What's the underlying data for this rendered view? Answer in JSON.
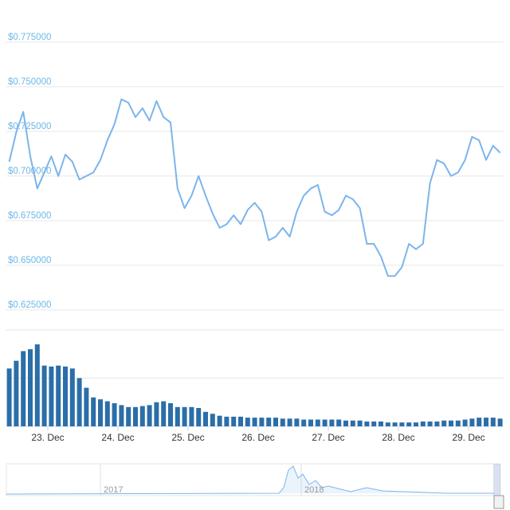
{
  "chart_data": {
    "type": "line",
    "x": [
      -0.55,
      -0.45,
      -0.35,
      -0.25,
      -0.15,
      -0.05,
      0.05,
      0.15,
      0.25,
      0.35,
      0.45,
      0.55,
      0.65,
      0.75,
      0.85,
      0.95,
      1.05,
      1.15,
      1.25,
      1.35,
      1.45,
      1.55,
      1.65,
      1.75,
      1.85,
      1.95,
      2.05,
      2.15,
      2.25,
      2.35,
      2.45,
      2.55,
      2.65,
      2.75,
      2.85,
      2.95,
      3.05,
      3.15,
      3.25,
      3.35,
      3.45,
      3.55,
      3.65,
      3.75,
      3.85,
      3.95,
      4.05,
      4.15,
      4.25,
      4.35,
      4.45,
      4.55,
      4.65,
      4.75,
      4.85,
      4.95,
      5.05,
      5.15,
      5.25,
      5.35,
      5.45,
      5.55,
      5.65,
      5.75,
      5.85,
      5.95,
      6.05,
      6.15,
      6.25,
      6.35,
      6.45
    ],
    "series": [
      {
        "color": "#7cb5ec",
        "values": [
          0.708,
          0.7245,
          0.736,
          0.711,
          0.693,
          0.702,
          0.711,
          0.7,
          0.712,
          0.708,
          0.698,
          0.7,
          0.702,
          0.709,
          0.72,
          0.729,
          0.743,
          0.741,
          0.733,
          0.738,
          0.731,
          0.742,
          0.733,
          0.73,
          0.693,
          0.682,
          0.689,
          0.7,
          0.689,
          0.679,
          0.671,
          0.673,
          0.678,
          0.673,
          0.681,
          0.685,
          0.68,
          0.664,
          0.666,
          0.671,
          0.666,
          0.68,
          0.689,
          0.693,
          0.695,
          0.68,
          0.678,
          0.681,
          0.689,
          0.687,
          0.682,
          0.662,
          0.662,
          0.655,
          0.644,
          0.644,
          0.649,
          0.662,
          0.659,
          0.662,
          0.696,
          0.709,
          0.707,
          0.7,
          0.702,
          0.709,
          0.722,
          0.72,
          0.709,
          0.717,
          0.713
        ]
      },
      {
        "type": "bar",
        "axis": "y2",
        "color": "#2b6ea8",
        "values": [
          60,
          68,
          78,
          80,
          85,
          63,
          62,
          63,
          62,
          60,
          50,
          40,
          30,
          28,
          26,
          24,
          22,
          20,
          20,
          21,
          22,
          25,
          26,
          24,
          20,
          20,
          20,
          19,
          15,
          13,
          11,
          10,
          10,
          10,
          9,
          9,
          9,
          9,
          9,
          8,
          8,
          8,
          7,
          7,
          7,
          7,
          7,
          7,
          6,
          6,
          6,
          5,
          5,
          5,
          4,
          4,
          4,
          4,
          4,
          5,
          5,
          5,
          6,
          6,
          6,
          7,
          8,
          9,
          9,
          9,
          8
        ]
      }
    ],
    "xlim": [
      -0.57,
      6.45
    ],
    "xticks": [
      {
        "value": 0,
        "label": "23. Dec"
      },
      {
        "value": 1,
        "label": "24. Dec"
      },
      {
        "value": 2,
        "label": "25. Dec"
      },
      {
        "value": 3,
        "label": "26. Dec"
      },
      {
        "value": 4,
        "label": "27. Dec"
      },
      {
        "value": 5,
        "label": "28. Dec"
      },
      {
        "value": 6,
        "label": "29. Dec"
      }
    ],
    "ylim": [
      0.612,
      0.787
    ],
    "yticks": [
      {
        "value": 0.625,
        "label": "$0.625000"
      },
      {
        "value": 0.65,
        "label": "$0.650000"
      },
      {
        "value": 0.675,
        "label": "$0.675000"
      },
      {
        "value": 0.7,
        "label": "$0.700000"
      },
      {
        "value": 0.725,
        "label": "$0.725000"
      },
      {
        "value": 0.75,
        "label": "$0.750000"
      },
      {
        "value": 0.775,
        "label": "$0.775000"
      }
    ],
    "y2lim": [
      0,
      100
    ],
    "y2ticks": [
      0,
      50,
      100
    ],
    "grid": true,
    "navigator": {
      "labels": [
        "2017",
        "2018"
      ]
    }
  }
}
